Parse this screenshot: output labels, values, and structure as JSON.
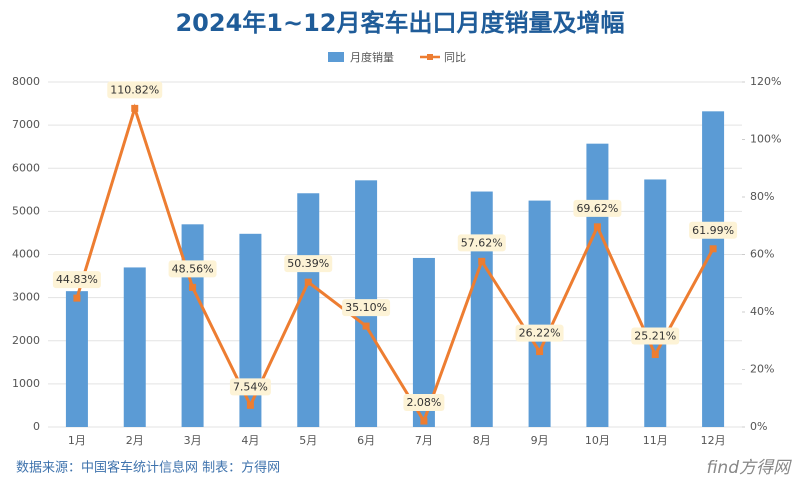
{
  "chart_data": {
    "type": "bar",
    "title": "2024年1~12月客车出口月度销量及增幅",
    "categories": [
      "1月",
      "2月",
      "3月",
      "4月",
      "5月",
      "6月",
      "7月",
      "8月",
      "9月",
      "10月",
      "11月",
      "12月"
    ],
    "series": [
      {
        "name": "月度销量",
        "type": "bar",
        "color": "#5b9bd5",
        "values": [
          3150,
          3700,
          4700,
          4480,
          5420,
          5720,
          3920,
          5460,
          5250,
          6570,
          5740,
          7320
        ]
      },
      {
        "name": "同比",
        "type": "line",
        "axis": "y2",
        "color": "#ed7d31",
        "values": [
          44.83,
          110.82,
          48.56,
          7.54,
          50.39,
          35.1,
          2.08,
          57.62,
          26.22,
          69.62,
          25.21,
          61.99
        ],
        "value_labels": [
          "44.83%",
          "110.82%",
          "48.56%",
          "7.54%",
          "50.39%",
          "35.10%",
          "2.08%",
          "57.62%",
          "26.22%",
          "69.62%",
          "25.21%",
          "61.99%"
        ]
      }
    ],
    "ylim": [
      0,
      8000
    ],
    "yticks": [
      0,
      1000,
      2000,
      3000,
      4000,
      5000,
      6000,
      7000,
      8000
    ],
    "y2lim": [
      0,
      120
    ],
    "y2ticks": [
      {
        "value": 0,
        "label": "0%"
      },
      {
        "value": 20,
        "label": "20%"
      },
      {
        "value": 40,
        "label": "40%"
      },
      {
        "value": 60,
        "label": "60%"
      },
      {
        "value": 80,
        "label": "80%"
      },
      {
        "value": 100,
        "label": "100%"
      },
      {
        "value": 120,
        "label": "120%"
      }
    ],
    "grid": true,
    "footnote": "数据来源：中国客车统计信息网 制表：方得网",
    "logo": "find方得网"
  }
}
